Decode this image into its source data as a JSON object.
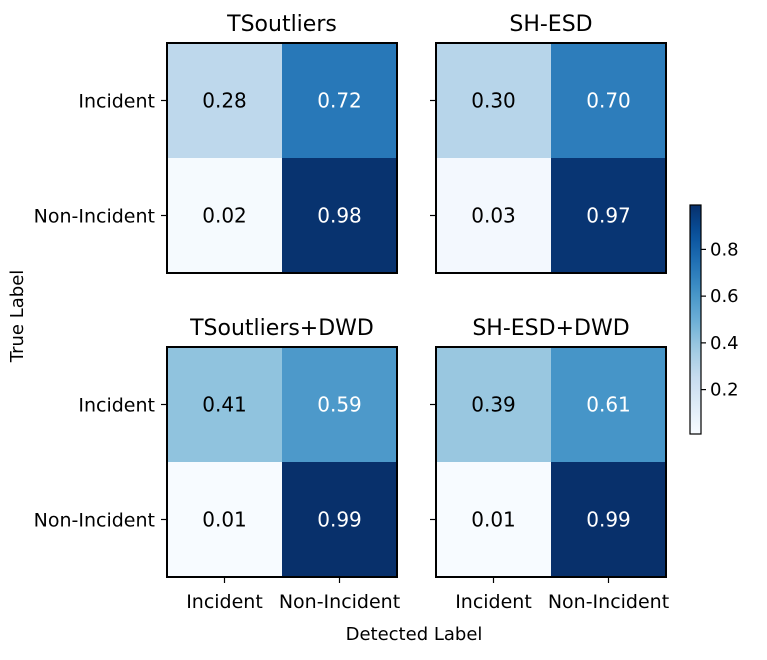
{
  "chart_data": {
    "type": "heatmap",
    "colormap": "Blues",
    "vmin": 0.01,
    "vmax": 0.99,
    "row_labels": [
      "Incident",
      "Non-Incident"
    ],
    "col_labels": [
      "Incident",
      "Non-Incident"
    ],
    "ylabel": "True Label",
    "xlabel": "Detected Label",
    "panels": [
      {
        "title": "TSoutliers",
        "matrix": [
          [
            0.28,
            0.72
          ],
          [
            0.02,
            0.98
          ]
        ],
        "labels": [
          [
            "0.28",
            "0.72"
          ],
          [
            "0.02",
            "0.98"
          ]
        ]
      },
      {
        "title": "SH-ESD",
        "matrix": [
          [
            0.3,
            0.7
          ],
          [
            0.03,
            0.97
          ]
        ],
        "labels": [
          [
            "0.30",
            "0.70"
          ],
          [
            "0.03",
            "0.97"
          ]
        ]
      },
      {
        "title": "TSoutliers+DWD",
        "matrix": [
          [
            0.41,
            0.59
          ],
          [
            0.01,
            0.99
          ]
        ],
        "labels": [
          [
            "0.41",
            "0.59"
          ],
          [
            "0.01",
            "0.99"
          ]
        ]
      },
      {
        "title": "SH-ESD+DWD",
        "matrix": [
          [
            0.39,
            0.61
          ],
          [
            0.01,
            0.99
          ]
        ],
        "labels": [
          [
            "0.39",
            "0.61"
          ],
          [
            "0.01",
            "0.99"
          ]
        ]
      }
    ],
    "colorbar": {
      "ticks": [
        0.2,
        0.4,
        0.6,
        0.8
      ],
      "tick_labels": [
        "0.2",
        "0.4",
        "0.6",
        "0.8"
      ]
    }
  }
}
